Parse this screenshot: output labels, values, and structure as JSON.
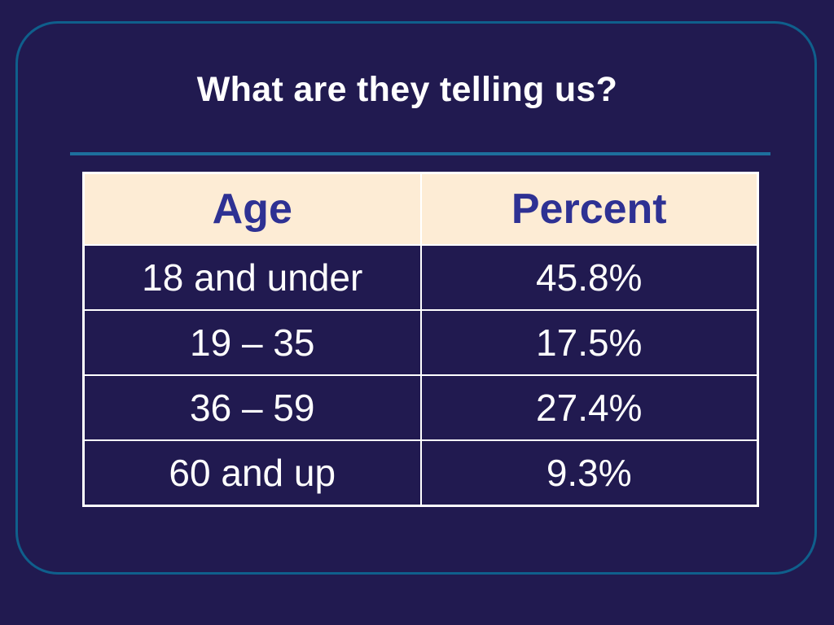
{
  "slide": {
    "title": "What are they telling us?"
  },
  "table": {
    "headers": [
      "Age",
      "Percent"
    ],
    "rows": [
      [
        "18 and under",
        "45.8%"
      ],
      [
        "19 – 35",
        "17.5%"
      ],
      [
        "36 – 59",
        "27.4%"
      ],
      [
        "60 and up",
        "9.3%"
      ]
    ]
  },
  "colors": {
    "background": "#211a50",
    "frame_border": "#0f5f8c",
    "header_fill": "#fdecd5",
    "header_text": "#2e3193",
    "body_text": "#ffffff"
  }
}
